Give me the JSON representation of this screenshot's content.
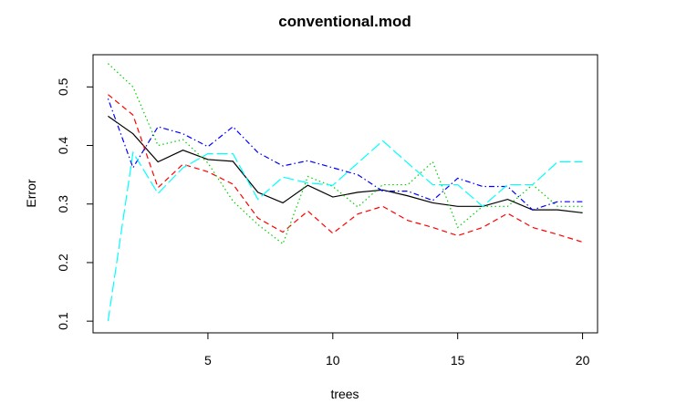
{
  "chart_data": {
    "type": "line",
    "title": "conventional.mod",
    "xlabel": "trees",
    "ylabel": "Error",
    "xlim": [
      0.4,
      20.6
    ],
    "ylim": [
      0.08,
      0.555
    ],
    "xticks": [
      5,
      10,
      15,
      20
    ],
    "yticks": [
      0.1,
      0.2,
      0.3,
      0.4,
      0.5
    ],
    "grid": false,
    "legend": "none",
    "x": [
      1,
      2,
      3,
      4,
      5,
      6,
      7,
      8,
      9,
      10,
      11,
      12,
      13,
      14,
      15,
      16,
      17,
      18,
      19,
      20
    ],
    "series": [
      {
        "color": "#000000",
        "dash": "solid",
        "values": [
          0.45,
          0.42,
          0.372,
          0.392,
          0.376,
          0.373,
          0.32,
          0.302,
          0.332,
          0.312,
          0.32,
          0.324,
          0.314,
          0.302,
          0.296,
          0.296,
          0.308,
          0.29,
          0.29,
          0.285
        ]
      },
      {
        "color": "#ff0000",
        "dash": "dashed",
        "values": [
          0.487,
          0.452,
          0.328,
          0.368,
          0.355,
          0.334,
          0.276,
          0.252,
          0.288,
          0.25,
          0.283,
          0.296,
          0.272,
          0.26,
          0.246,
          0.26,
          0.284,
          0.26,
          0.248,
          0.235
        ]
      },
      {
        "color": "#00cd00",
        "dash": "dotted",
        "values": [
          0.54,
          0.5,
          0.4,
          0.41,
          0.37,
          0.305,
          0.265,
          0.232,
          0.347,
          0.33,
          0.295,
          0.333,
          0.333,
          0.372,
          0.26,
          0.296,
          0.296,
          0.333,
          0.296,
          0.296
        ]
      },
      {
        "color": "#0000ff",
        "dash": "dotdash",
        "values": [
          0.48,
          0.362,
          0.432,
          0.42,
          0.398,
          0.432,
          0.388,
          0.365,
          0.374,
          0.362,
          0.35,
          0.322,
          0.322,
          0.306,
          0.344,
          0.33,
          0.33,
          0.29,
          0.304,
          0.304
        ]
      },
      {
        "color": "#00ffff",
        "dash": "longdash",
        "values": [
          0.1,
          0.388,
          0.318,
          0.362,
          0.386,
          0.386,
          0.308,
          0.346,
          0.336,
          0.332,
          0.37,
          0.408,
          0.37,
          0.333,
          0.333,
          0.296,
          0.333,
          0.333,
          0.372,
          0.372
        ]
      }
    ]
  }
}
